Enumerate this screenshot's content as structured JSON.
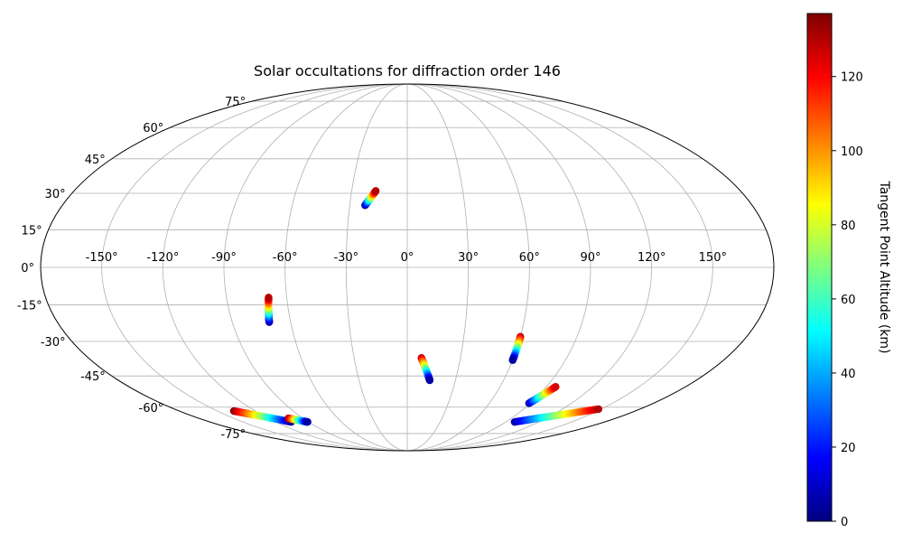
{
  "chart_data": {
    "type": "scatter",
    "projection": "mollweide",
    "title": "Solar occultations for diffraction order 146",
    "grid": true,
    "longitude_ticks": [
      -150,
      -120,
      -90,
      -60,
      -30,
      0,
      30,
      60,
      90,
      120,
      150
    ],
    "longitude_tick_labels": [
      "-150°",
      "-120°",
      "-90°",
      "-60°",
      "-30°",
      "0°",
      "30°",
      "60°",
      "90°",
      "120°",
      "150°"
    ],
    "latitude_ticks": [
      75,
      60,
      45,
      30,
      15,
      0,
      -15,
      -30,
      -45,
      -60,
      -75
    ],
    "latitude_tick_labels": [
      "75°",
      "60°",
      "45°",
      "30°",
      "15°",
      "0°",
      "-15°",
      "-30°",
      "-45°",
      "-60°",
      "-75°"
    ],
    "colorbar": {
      "label": "Tangent Point Altitude (km)",
      "colormap": "jet",
      "range": [
        0,
        137
      ],
      "ticks": [
        0,
        20,
        40,
        60,
        80,
        100,
        120
      ],
      "tick_labels": [
        "0",
        "20",
        "40",
        "60",
        "80",
        "100",
        "120"
      ],
      "colors": [
        "#00007f",
        "#0000ff",
        "#007fff",
        "#00ffff",
        "#7fff7f",
        "#ffff00",
        "#ff7f00",
        "#ff0000",
        "#7f0000"
      ]
    },
    "occultations": [
      {
        "lon_start": -22,
        "lat_start": 25,
        "lon_end": -17,
        "lat_end": 31,
        "alt_start": 0,
        "alt_end": 130
      },
      {
        "lon_start": -71,
        "lat_start": -22,
        "lon_end": -69,
        "lat_end": -12,
        "alt_start": 0,
        "alt_end": 130
      },
      {
        "lon_start": 8,
        "lat_start": -37,
        "lon_end": 14,
        "lat_end": -47,
        "alt_start": 130,
        "alt_end": 5
      },
      {
        "lon_start": 60,
        "lat_start": -28,
        "lon_end": 60,
        "lat_end": -38,
        "alt_start": 130,
        "alt_end": 5
      },
      {
        "lon_start": -137,
        "lat_start": -62,
        "lon_end": -106,
        "lat_end": -68,
        "alt_start": 135,
        "alt_end": 5
      },
      {
        "lon_start": -103,
        "lat_start": -66,
        "lon_end": -91,
        "lat_end": -68,
        "alt_start": 135,
        "alt_end": 5
      },
      {
        "lon_start": 89,
        "lat_start": -58,
        "lon_end": 96,
        "lat_end": -50,
        "alt_start": 5,
        "alt_end": 125
      },
      {
        "lon_start": 98,
        "lat_start": -68,
        "lon_end": 148,
        "lat_end": -61,
        "alt_start": 5,
        "alt_end": 130
      }
    ]
  }
}
